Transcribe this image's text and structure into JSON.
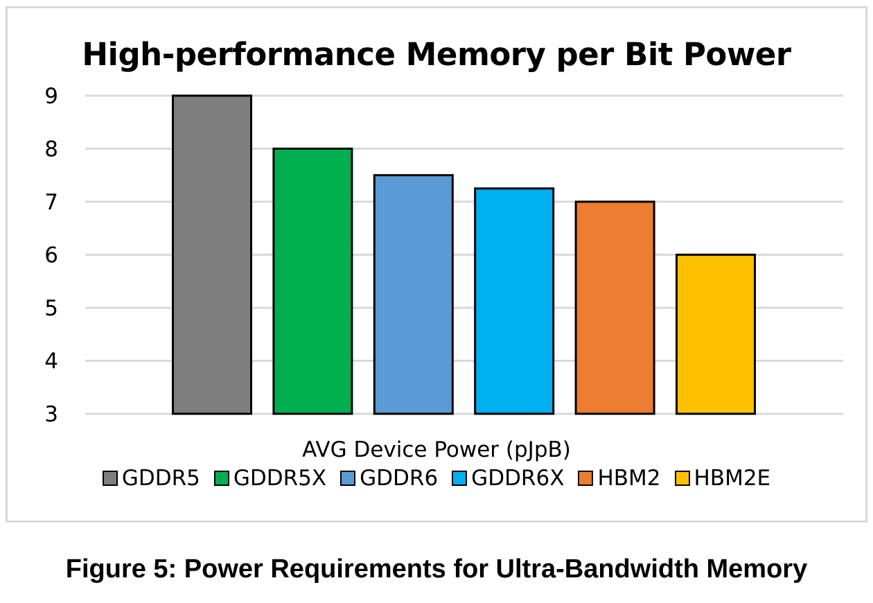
{
  "chart_data": {
    "type": "bar",
    "title": "High-performance Memory per Bit Power",
    "xlabel": "AVG Device Power (pJpB)",
    "ylabel": "",
    "ylim": [
      3,
      9
    ],
    "yticks": [
      3,
      4,
      5,
      6,
      7,
      8,
      9
    ],
    "grid": true,
    "legend_position": "bottom",
    "series": [
      {
        "name": "GDDR5",
        "value": 9,
        "color": "#7f7f7f"
      },
      {
        "name": "GDDR5X",
        "value": 8,
        "color": "#00b050"
      },
      {
        "name": "GDDR6",
        "value": 7.5,
        "color": "#5b9bd5"
      },
      {
        "name": "GDDR6X",
        "value": 7.25,
        "color": "#00b0f0"
      },
      {
        "name": "HBM2",
        "value": 7,
        "color": "#ed7d31"
      },
      {
        "name": "HBM2E",
        "value": 6,
        "color": "#ffc000"
      }
    ]
  },
  "caption": "Figure 5: Power Requirements for Ultra-Bandwidth Memory"
}
